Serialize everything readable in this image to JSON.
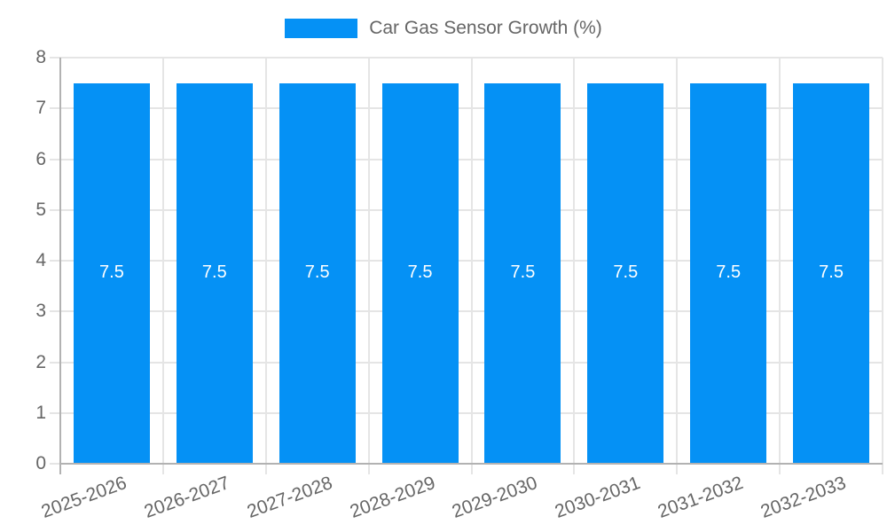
{
  "chart_data": {
    "type": "bar",
    "title": "Car Gas Sensor Growth (%)",
    "categories": [
      "2025-2026",
      "2026-2027",
      "2027-2028",
      "2028-2029",
      "2029-2030",
      "2030-2031",
      "2031-2032",
      "2032-2033"
    ],
    "values": [
      7.5,
      7.5,
      7.5,
      7.5,
      7.5,
      7.5,
      7.5,
      7.5
    ],
    "bar_value_labels": [
      "7.5",
      "7.5",
      "7.5",
      "7.5",
      "7.5",
      "7.5",
      "7.5",
      "7.5"
    ],
    "xlabel": "",
    "ylabel": "",
    "ylim": [
      0,
      8
    ],
    "yticks": [
      0,
      1,
      2,
      3,
      4,
      5,
      6,
      7,
      8
    ],
    "grid": true,
    "legend_position": "top-center",
    "x_label_rotation_deg": -20,
    "colors": {
      "bar": "#0591F5",
      "bar_label": "#FFFFFF",
      "text": "#666666",
      "grid": "#E5E5E5",
      "axis": "#B2B2B2",
      "background": "#FFFFFF"
    }
  }
}
